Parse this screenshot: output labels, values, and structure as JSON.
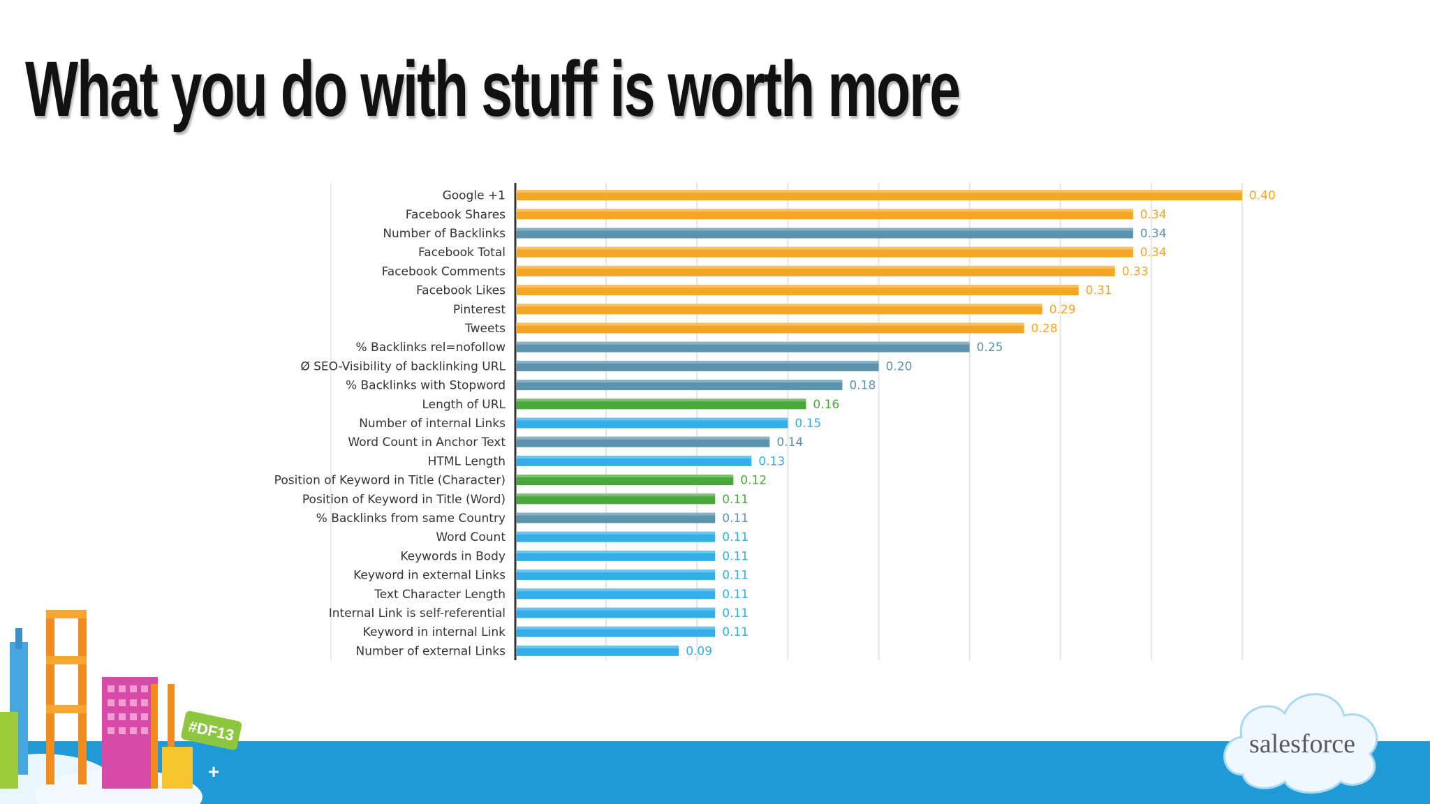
{
  "slide": {
    "title": "What you do with stuff is worth more"
  },
  "branding": {
    "logo_text": "salesforce",
    "hashtag": "#DF13",
    "band_color": "#1e9ad6"
  },
  "colors": {
    "orange": "#f5a623",
    "slate": "#5b93ad",
    "green": "#49a83a",
    "sky": "#33aee9"
  },
  "chart_data": {
    "type": "bar",
    "orientation": "horizontal",
    "xlim": [
      0,
      0.42
    ],
    "grid": true,
    "categories": [
      "Google +1",
      "Facebook Shares",
      "Number of Backlinks",
      "Facebook Total",
      "Facebook Comments",
      "Facebook Likes",
      "Pinterest",
      "Tweets",
      "% Backlinks rel=nofollow",
      "Ø SEO-Visibility of backlinking URL",
      "% Backlinks with Stopword",
      "Length of URL",
      "Number of internal Links",
      "Word Count in Anchor Text",
      "HTML Length",
      "Position of Keyword in Title (Character)",
      "Position of Keyword in Title (Word)",
      "% Backlinks from same Country",
      "Word Count",
      "Keywords in Body",
      "Keyword in external Links",
      "Text Character Length",
      "Internal Link is self-referential",
      "Keyword in internal Link",
      "Number of external Links"
    ],
    "values": [
      0.4,
      0.34,
      0.34,
      0.34,
      0.33,
      0.31,
      0.29,
      0.28,
      0.25,
      0.2,
      0.18,
      0.16,
      0.15,
      0.14,
      0.13,
      0.12,
      0.11,
      0.11,
      0.11,
      0.11,
      0.11,
      0.11,
      0.11,
      0.11,
      0.09
    ],
    "value_labels": [
      "0.40",
      "0.34",
      "0.34",
      "0.34",
      "0.33",
      "0.31",
      "0.29",
      "0.28",
      "0.25",
      "0.20",
      "0.18",
      "0.16",
      "0.15",
      "0.14",
      "0.13",
      "0.12",
      "0.11",
      "0.11",
      "0.11",
      "0.11",
      "0.11",
      "0.11",
      "0.11",
      "0.11",
      "0.09"
    ],
    "bar_groups": [
      "orange",
      "orange",
      "slate",
      "orange",
      "orange",
      "orange",
      "orange",
      "orange",
      "slate",
      "slate",
      "slate",
      "green",
      "sky",
      "slate",
      "sky",
      "green",
      "green",
      "slate",
      "sky",
      "sky",
      "sky",
      "sky",
      "sky",
      "sky",
      "sky"
    ]
  }
}
